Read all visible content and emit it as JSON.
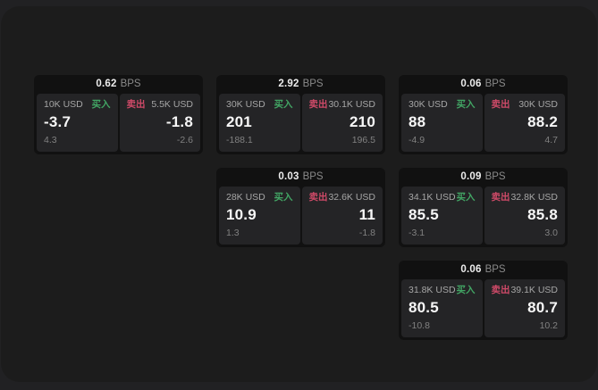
{
  "colors": {
    "buy_green": "#42a564",
    "sell_red": "#cf4a68",
    "window_bg": "#1c1c1c",
    "card_bg": "#111111",
    "panel_bg": "#242426"
  },
  "cards": [
    {
      "bps_value": "0.62",
      "bps_unit": "BPS",
      "buy": {
        "amount": "10K USD",
        "label": "买入",
        "price": "-3.7",
        "sub_value": "4.3"
      },
      "sell": {
        "label": "卖出",
        "amount": "5.5K USD",
        "price": "-1.8",
        "sub_value": "-2.6"
      }
    },
    {
      "bps_value": "2.92",
      "bps_unit": "BPS",
      "buy": {
        "amount": "30K USD",
        "label": "买入",
        "price": "201",
        "sub_value": "-188.1"
      },
      "sell": {
        "label": "卖出",
        "amount": "30.1K USD",
        "price": "210",
        "sub_value": "196.5"
      }
    },
    {
      "bps_value": "0.06",
      "bps_unit": "BPS",
      "buy": {
        "amount": "30K USD",
        "label": "买入",
        "price": "88",
        "sub_value": "-4.9"
      },
      "sell": {
        "label": "卖出",
        "amount": "30K USD",
        "price": "88.2",
        "sub_value": "4.7"
      }
    },
    {
      "bps_value": "0.03",
      "bps_unit": "BPS",
      "buy": {
        "amount": "28K USD",
        "label": "买入",
        "price": "10.9",
        "sub_value": "1.3"
      },
      "sell": {
        "label": "卖出",
        "amount": "32.6K USD",
        "price": "11",
        "sub_value": "-1.8"
      }
    },
    {
      "bps_value": "0.09",
      "bps_unit": "BPS",
      "buy": {
        "amount": "34.1K USD",
        "label": "买入",
        "price": "85.5",
        "sub_value": "-3.1"
      },
      "sell": {
        "label": "卖出",
        "amount": "32.8K USD",
        "price": "85.8",
        "sub_value": "3.0"
      }
    },
    {
      "bps_value": "0.06",
      "bps_unit": "BPS",
      "buy": {
        "amount": "31.8K USD",
        "label": "买入",
        "price": "80.5",
        "sub_value": "-10.8"
      },
      "sell": {
        "label": "卖出",
        "amount": "39.1K USD",
        "price": "80.7",
        "sub_value": "10.2"
      }
    }
  ]
}
